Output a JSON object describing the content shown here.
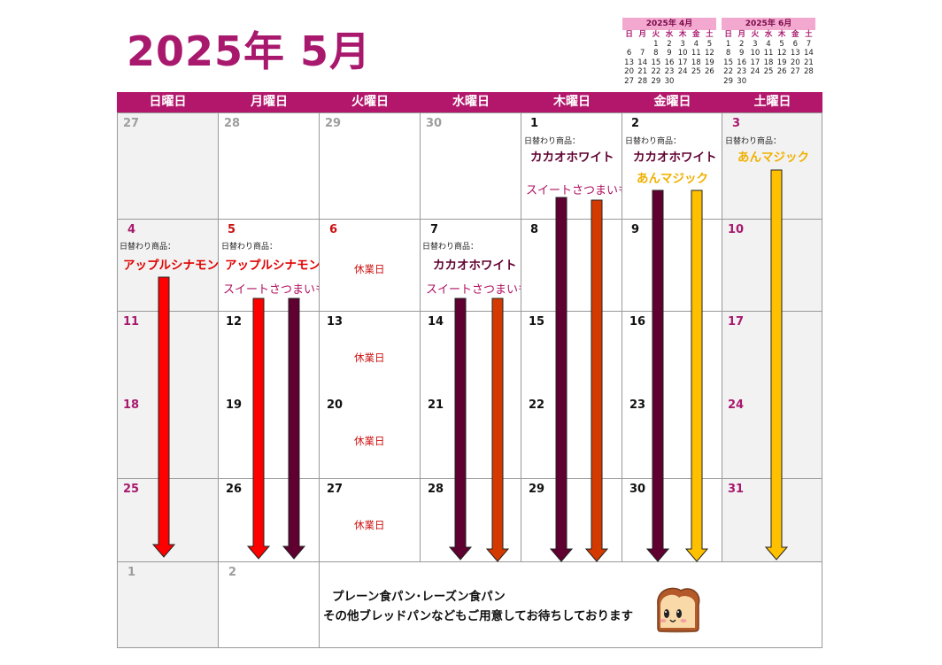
{
  "title": "2025年 5月",
  "mini_calendars": [
    {
      "header": "2025年 4月",
      "day_names": [
        "日",
        "月",
        "火",
        "水",
        "木",
        "金",
        "土"
      ],
      "weeks": [
        [
          "",
          "",
          "1",
          "2",
          "3",
          "4",
          "5"
        ],
        [
          "6",
          "7",
          "8",
          "9",
          "10",
          "11",
          "12"
        ],
        [
          "13",
          "14",
          "15",
          "16",
          "17",
          "18",
          "19"
        ],
        [
          "20",
          "21",
          "22",
          "23",
          "24",
          "25",
          "26"
        ],
        [
          "27",
          "28",
          "29",
          "30",
          "",
          "",
          ""
        ]
      ]
    },
    {
      "header": "2025年 6月",
      "day_names": [
        "日",
        "月",
        "火",
        "水",
        "木",
        "金",
        "土"
      ],
      "weeks": [
        [
          "1",
          "2",
          "3",
          "4",
          "5",
          "6",
          "7"
        ],
        [
          "8",
          "9",
          "10",
          "11",
          "12",
          "13",
          "14"
        ],
        [
          "15",
          "16",
          "17",
          "18",
          "19",
          "20",
          "21"
        ],
        [
          "22",
          "23",
          "24",
          "25",
          "26",
          "27",
          "28"
        ],
        [
          "29",
          "30",
          "",
          "",
          "",
          "",
          ""
        ]
      ]
    }
  ],
  "weekdays": [
    "日曜日",
    "月曜日",
    "火曜日",
    "水曜日",
    "木曜日",
    "金曜日",
    "土曜日"
  ],
  "days": [
    [
      "27",
      "28",
      "29",
      "30",
      "1",
      "2",
      "3"
    ],
    [
      "4",
      "5",
      "6",
      "7",
      "8",
      "9",
      "10"
    ],
    [
      "11",
      "12",
      "13",
      "14",
      "15",
      "16",
      "17"
    ],
    [
      "18",
      "19",
      "20",
      "21",
      "22",
      "23",
      "24"
    ],
    [
      "25",
      "26",
      "27",
      "28",
      "29",
      "30",
      "31"
    ],
    [
      "1",
      "2"
    ]
  ],
  "daily_label": "日替わり商品：",
  "products": {
    "cacao": "カカオホワイト",
    "sweet_potato": "スイートさつまいも",
    "anko": "あんマジック",
    "apple": "アップルシナモン"
  },
  "closed_label": "休業日",
  "footer": {
    "line1": "プレーン食パン･レーズン食パン",
    "line2": "その他ブレッドパンなどもご用意してお待ちしております"
  },
  "colors": {
    "accent": "#b3176b",
    "apple": "#ff0000",
    "cacao": "#600030",
    "sweet_potato": "#d43a00",
    "anko": "#ffc000"
  }
}
